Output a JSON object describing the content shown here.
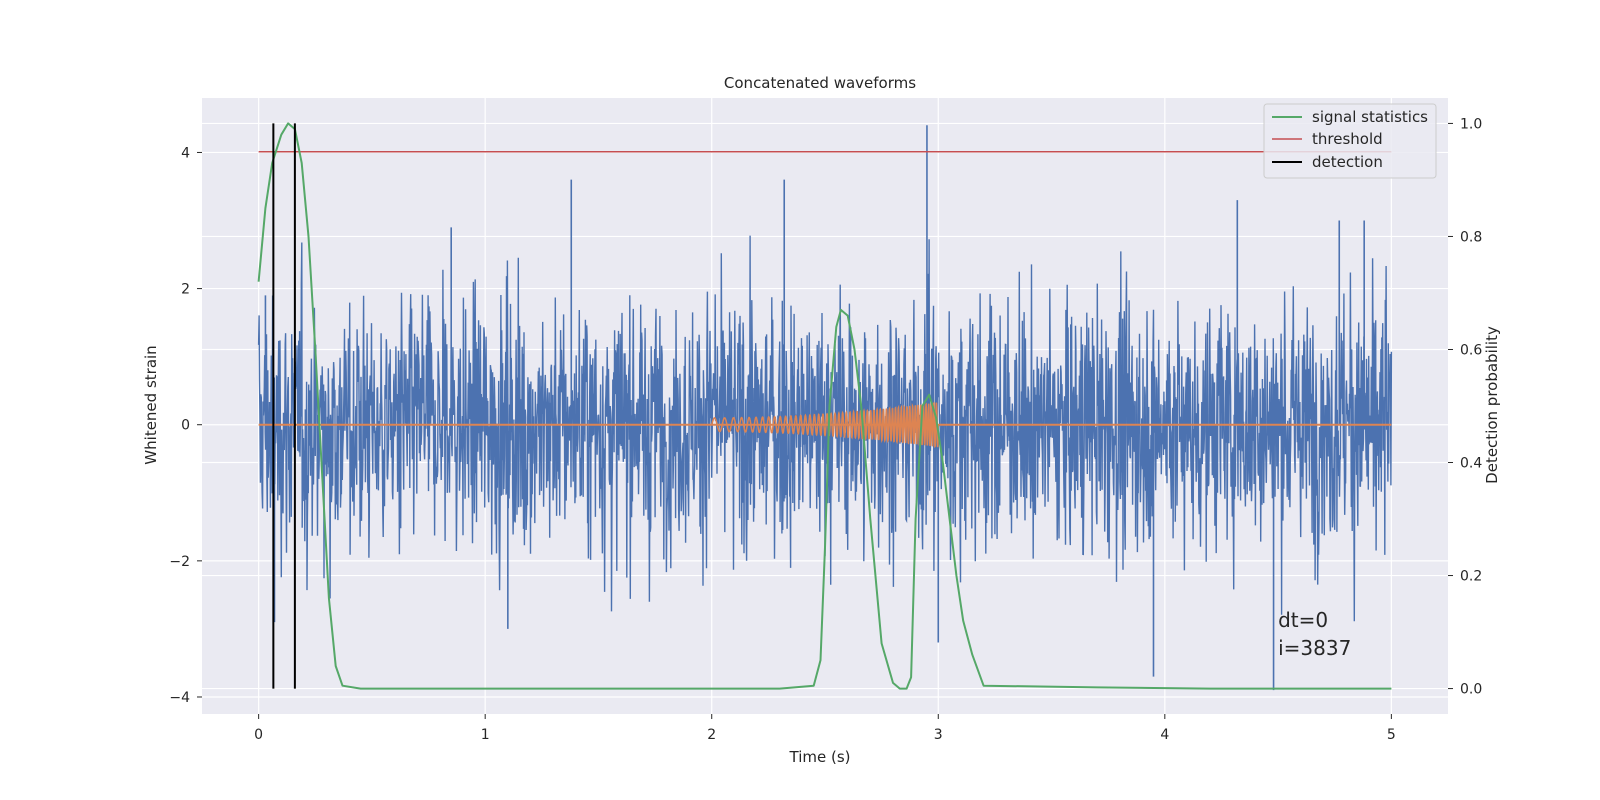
{
  "chart_data": {
    "type": "line",
    "title": "Concatenated waveforms",
    "xlabel": "Time (s)",
    "ylabel": "Whitened strain",
    "y2label": "Detection probability",
    "xlim": [
      -0.25,
      5.25
    ],
    "ylim": [
      -4.25,
      4.8
    ],
    "y2lim": [
      -0.045,
      1.045
    ],
    "xticks": [
      0,
      1,
      2,
      3,
      4,
      5
    ],
    "xtick_labels": [
      "0",
      "1",
      "2",
      "3",
      "4",
      "5"
    ],
    "yticks": [
      -4,
      -2,
      0,
      2,
      4
    ],
    "ytick_labels": [
      "−4",
      "−2",
      "0",
      "2",
      "4"
    ],
    "y2ticks": [
      0.0,
      0.2,
      0.4,
      0.6,
      0.8,
      1.0
    ],
    "y2tick_labels": [
      "0.0",
      "0.2",
      "0.4",
      "0.6",
      "0.8",
      "1.0"
    ],
    "grid": true,
    "legend_position": "top-right",
    "series": [
      {
        "name": "whitened strain (noisy)",
        "axis": "left",
        "color": "#4c72b0",
        "x_range": [
          0,
          5
        ],
        "typical_peak_amplitude": 2.6,
        "spikes": [
          [
            0.03,
            1.9
          ],
          [
            0.07,
            -2.9
          ],
          [
            0.85,
            2.9
          ],
          [
            1.38,
            3.6
          ],
          [
            1.1,
            -3.0
          ],
          [
            2.32,
            3.6
          ],
          [
            2.95,
            4.4
          ],
          [
            3.0,
            -3.2
          ],
          [
            4.32,
            3.3
          ],
          [
            4.48,
            -3.9
          ],
          [
            3.95,
            -3.7
          ],
          [
            4.77,
            3.0
          ],
          [
            4.88,
            3.0
          ]
        ]
      },
      {
        "name": "injected chirp",
        "axis": "left",
        "color": "#dd8452",
        "x": [
          2.0,
          3.0
        ],
        "amplitude_start": 0.1,
        "amplitude_end": 0.33,
        "freq_start_hz": 20,
        "freq_end_hz": 90
      },
      {
        "name": "signal statistics",
        "axis": "right",
        "color": "#55a868",
        "x": [
          0.0,
          0.03,
          0.06,
          0.1,
          0.13,
          0.16,
          0.19,
          0.22,
          0.25,
          0.28,
          0.31,
          0.34,
          0.37,
          0.45,
          2.3,
          2.45,
          2.48,
          2.5,
          2.52,
          2.55,
          2.57,
          2.6,
          2.63,
          2.66,
          2.7,
          2.75,
          2.8,
          2.83,
          2.86,
          2.88,
          2.9,
          2.93,
          2.96,
          2.99,
          3.02,
          3.05,
          3.08,
          3.11,
          3.15,
          3.2,
          3.7,
          4.2,
          5.0
        ],
        "y": [
          0.72,
          0.85,
          0.93,
          0.98,
          1.0,
          0.99,
          0.93,
          0.8,
          0.6,
          0.38,
          0.16,
          0.04,
          0.005,
          0.0,
          0.0,
          0.005,
          0.05,
          0.25,
          0.5,
          0.64,
          0.67,
          0.66,
          0.6,
          0.5,
          0.3,
          0.08,
          0.01,
          0.0,
          0.0,
          0.02,
          0.3,
          0.5,
          0.52,
          0.48,
          0.4,
          0.3,
          0.2,
          0.12,
          0.06,
          0.005,
          0.002,
          0.0,
          0.0
        ]
      },
      {
        "name": "threshold",
        "axis": "right",
        "color": "#c44e52",
        "x": [
          0,
          5
        ],
        "y": [
          0.95,
          0.95
        ]
      },
      {
        "name": "detection",
        "axis": "right",
        "color": "#000000",
        "x": [
          0.065,
          0.16
        ],
        "y_range": [
          0,
          1
        ]
      }
    ],
    "legend": [
      {
        "label": "signal statistics",
        "color": "#55a868"
      },
      {
        "label": "threshold",
        "color": "#c44e52"
      },
      {
        "label": "detection",
        "color": "#000000"
      }
    ],
    "annotation": {
      "lines": [
        "dt=0",
        "i=3837"
      ],
      "x": 4.5,
      "y2": 0.07
    }
  }
}
